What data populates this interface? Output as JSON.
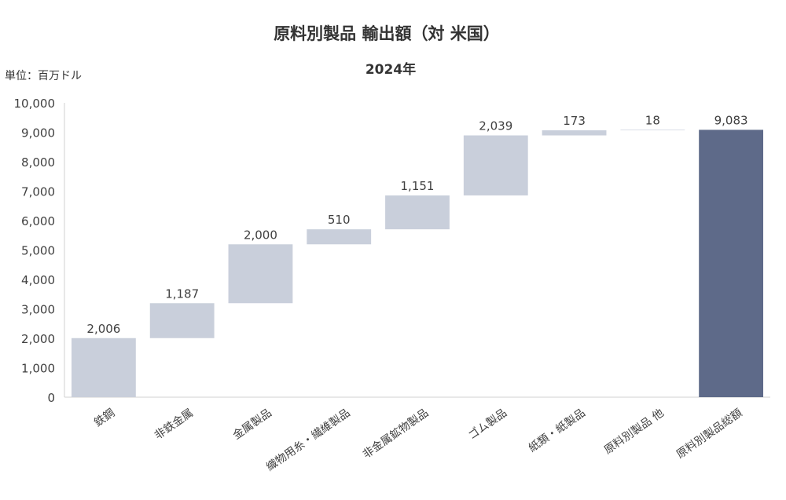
{
  "colors": {
    "background": "#ffffff",
    "bar_light": "#c9cfdb",
    "bar_total": "#5e6a89",
    "axis_line": "#d0d0d0",
    "text_main": "#404040",
    "text_title": "#333333"
  },
  "chart_data": {
    "type": "bar",
    "subtype": "waterfall",
    "title": "原料別製品 輸出額（対 米国）",
    "subtitle": "2024年",
    "unit_label": "単位：百万ドル",
    "xlabel": "",
    "ylabel": "",
    "ylim": [
      0,
      10000
    ],
    "yticks": [
      0,
      1000,
      2000,
      3000,
      4000,
      5000,
      6000,
      7000,
      8000,
      9000,
      10000
    ],
    "ytick_labels": [
      "0",
      "1,000",
      "2,000",
      "3,000",
      "4,000",
      "5,000",
      "6,000",
      "7,000",
      "8,000",
      "9,000",
      "10,000"
    ],
    "grid": false,
    "legend": "none",
    "categories": [
      "鉄鋼",
      "非鉄金属",
      "金属製品",
      "織物用糸・繊維製品",
      "非金属鉱物製品",
      "ゴム製品",
      "紙類・紙製品",
      "原料別製品 他",
      "原料別製品総額"
    ],
    "values": [
      2006,
      1187,
      2000,
      510,
      1151,
      2039,
      173,
      18,
      9083
    ],
    "value_labels": [
      "2,006",
      "1,187",
      "2,000",
      "510",
      "1,151",
      "2,039",
      "173",
      "18",
      "9,083"
    ],
    "is_total": [
      false,
      false,
      false,
      false,
      false,
      false,
      false,
      false,
      true
    ]
  }
}
